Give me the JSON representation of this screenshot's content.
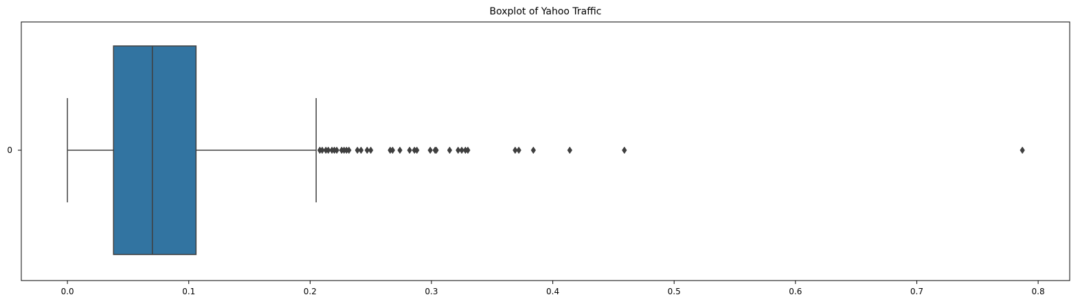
{
  "chart_data": {
    "type": "boxplot",
    "title": "Boxplot of Yahoo Traffic",
    "orientation": "horizontal",
    "xlabel": "",
    "ylabel": "",
    "xlim": [
      -0.038,
      0.826
    ],
    "xticks": [
      0.0,
      0.1,
      0.2,
      0.3,
      0.4,
      0.5,
      0.6,
      0.7,
      0.8
    ],
    "xtick_labels": [
      "0.0",
      "0.1",
      "0.2",
      "0.3",
      "0.4",
      "0.5",
      "0.6",
      "0.7",
      "0.8"
    ],
    "categories": [
      "0"
    ],
    "boxes": [
      {
        "category": "0",
        "whisker_low": 0.0,
        "q1": 0.038,
        "median": 0.07,
        "q3": 0.106,
        "whisker_high": 0.205,
        "outliers": [
          0.208,
          0.21,
          0.213,
          0.215,
          0.218,
          0.22,
          0.222,
          0.226,
          0.228,
          0.23,
          0.232,
          0.239,
          0.242,
          0.247,
          0.25,
          0.266,
          0.268,
          0.274,
          0.282,
          0.286,
          0.288,
          0.299,
          0.303,
          0.304,
          0.315,
          0.322,
          0.325,
          0.328,
          0.33,
          0.369,
          0.372,
          0.384,
          0.414,
          0.459,
          0.787
        ]
      }
    ],
    "colors": {
      "box_fill": "#3274a1",
      "line": "#3f3f3f",
      "axes": "#000000"
    },
    "grid": false,
    "legend": "none"
  }
}
